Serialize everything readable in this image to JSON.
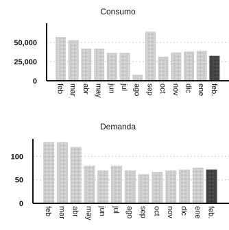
{
  "chart_data": [
    {
      "type": "bar",
      "title": "Consumo",
      "categories": [
        "feb",
        "mar",
        "abr",
        "may",
        "jun",
        "jul",
        "ago",
        "sep",
        "oct",
        "nov",
        "dic",
        "ene",
        "feb."
      ],
      "values": [
        57000,
        53000,
        42000,
        42000,
        36500,
        36500,
        8000,
        64000,
        31500,
        37000,
        38000,
        39000,
        32500
      ],
      "yticks": [
        0,
        25000,
        50000
      ],
      "ytick_labels": [
        "0",
        "25,000",
        "50,000"
      ],
      "ylim": [
        0,
        75000
      ],
      "grid": true,
      "bar_color": "#d2d2d2",
      "highlight_color": "#4a4a4a",
      "highlight_index": 12
    },
    {
      "type": "bar",
      "title": "Demanda",
      "categories": [
        "feb",
        "mar",
        "abr",
        "may",
        "jun",
        "jul",
        "ago",
        "sep",
        "oct",
        "nov",
        "dic",
        "ene",
        "feb."
      ],
      "values": [
        130,
        130,
        120,
        80,
        70,
        80,
        70,
        62,
        67,
        70,
        72,
        76,
        72
      ],
      "yticks": [
        0,
        50,
        100
      ],
      "ytick_labels": [
        "0",
        "50",
        "100"
      ],
      "ylim": [
        0,
        137
      ],
      "grid": true,
      "bar_color": "#d2d2d2",
      "highlight_color": "#4a4a4a",
      "highlight_index": 12
    }
  ]
}
